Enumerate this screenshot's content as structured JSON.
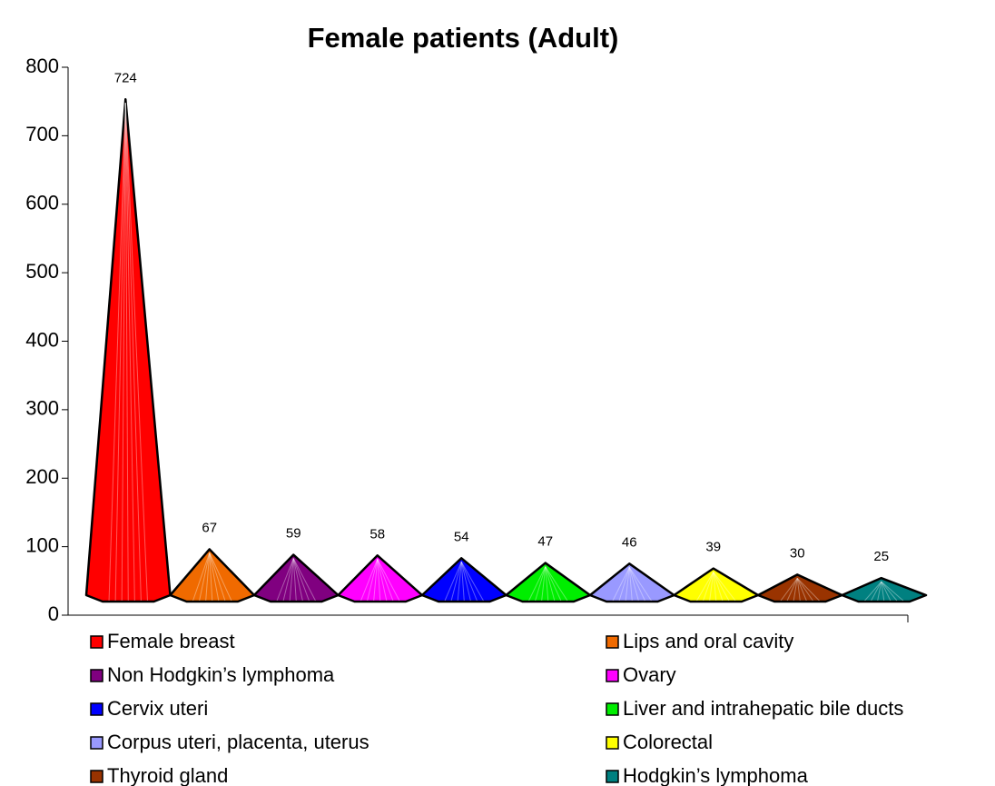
{
  "chart_data": {
    "type": "pyramid",
    "title": "Female patients (Adult)",
    "categories": [
      "Female breast",
      "Lips and oral cavity",
      "Non Hodgkin’s lymphoma",
      "Ovary",
      "Cervix uteri",
      "Liver and intrahepatic bile ducts",
      "Corpus uteri, placenta, uterus",
      "Colorectal",
      "Thyroid gland",
      "Hodgkin’s lymphoma"
    ],
    "values": [
      724,
      67,
      59,
      58,
      54,
      47,
      46,
      39,
      30,
      25
    ],
    "colors": [
      "#ff0000",
      "#f06a00",
      "#800080",
      "#ff00ff",
      "#0000ff",
      "#00ee00",
      "#9999ff",
      "#ffff00",
      "#993300",
      "#008080"
    ],
    "ylim": [
      0,
      800
    ],
    "yticks": [
      0,
      100,
      200,
      300,
      400,
      500,
      600,
      700,
      800
    ],
    "legend": "bottom"
  }
}
